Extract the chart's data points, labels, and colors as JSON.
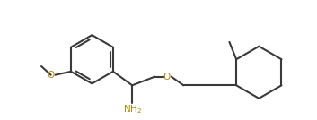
{
  "background_color": "#ffffff",
  "line_color": "#3a3a3a",
  "line_width": 1.5,
  "text_color_O": "#b8860b",
  "text_color_NH2": "#b8860b",
  "font_size": 7.5
}
